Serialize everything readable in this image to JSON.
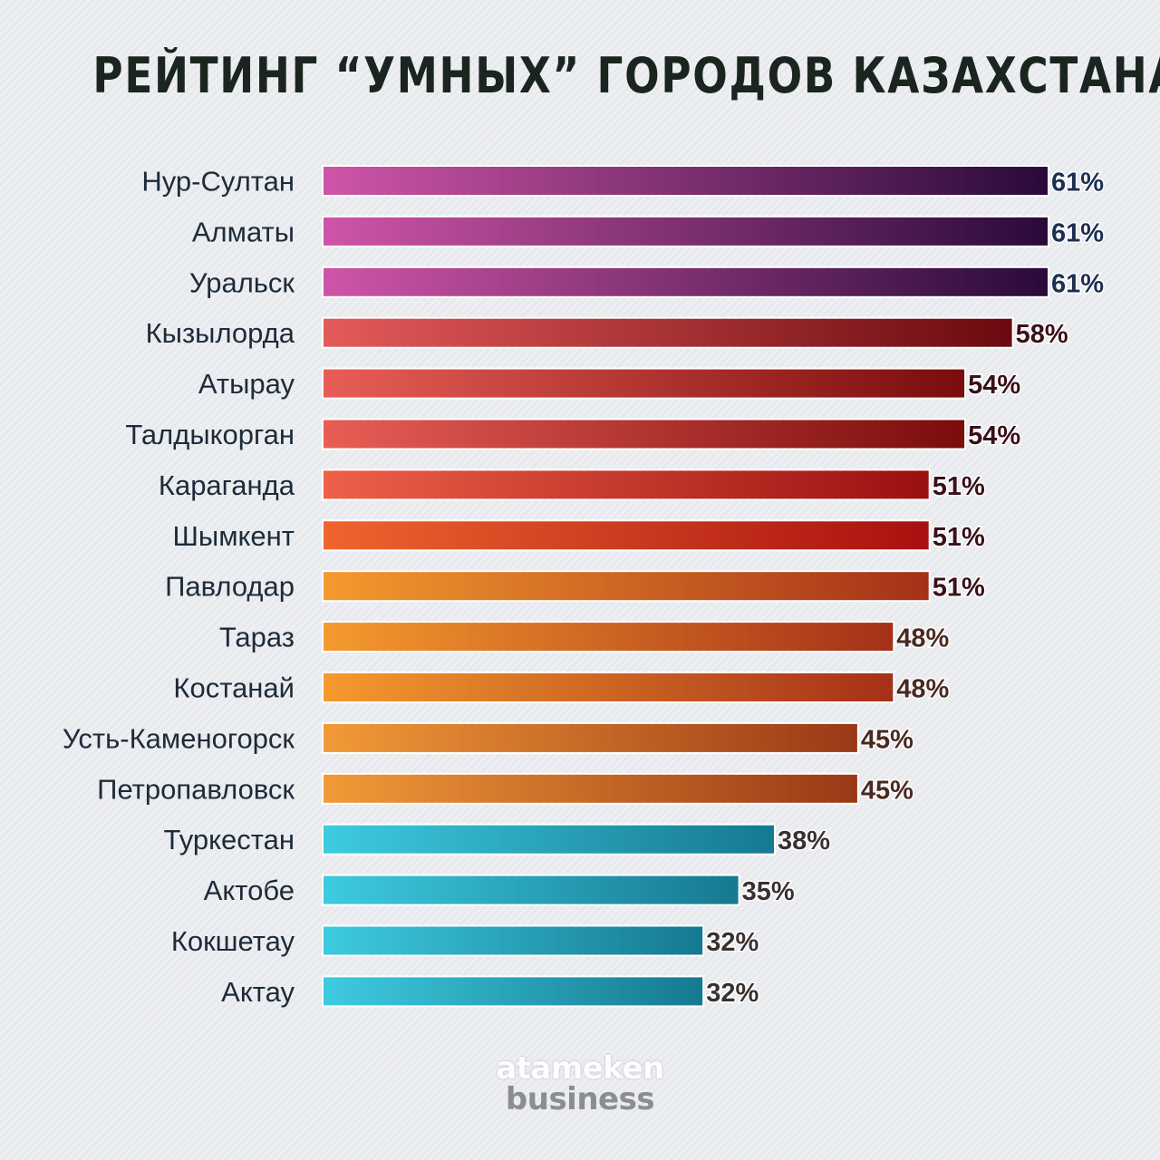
{
  "title": "РЕЙТИНГ “УМНЫХ” ГОРОДОВ КАЗАХСТАНА",
  "logo": {
    "line1": "atameken",
    "line2": "business"
  },
  "chart_data": {
    "type": "bar",
    "orientation": "horizontal",
    "title": "РЕЙТИНГ “УМНЫХ” ГОРОДОВ КАЗАХСТАНА",
    "categories": [
      "Нур-Султан",
      "Алматы",
      "Уральск",
      "Кызылорда",
      "Атырау",
      "Талдыкорган",
      "Караганда",
      "Шымкент",
      "Павлодар",
      "Тараз",
      "Костанай",
      "Усть-Каменогорск",
      "Петропавловск",
      "Туркестан",
      "Актобе",
      "Кокшетау",
      "Актау"
    ],
    "values": [
      61,
      61,
      61,
      58,
      54,
      54,
      51,
      51,
      51,
      48,
      48,
      45,
      45,
      38,
      35,
      32,
      32
    ],
    "value_labels": [
      "61%",
      "61%",
      "61%",
      "58%",
      "54%",
      "54%",
      "51%",
      "51%",
      "51%",
      "48%",
      "48%",
      "45%",
      "45%",
      "38%",
      "35%",
      "32%",
      "32%"
    ],
    "unit": "%",
    "xlim": [
      0,
      61
    ],
    "grid": false,
    "bar_gradients": [
      [
        "#cf55a8",
        "#2a0a3a"
      ],
      [
        "#cf55a8",
        "#2a0a3a"
      ],
      [
        "#cf55a8",
        "#2a0a3a"
      ],
      [
        "#e45a5a",
        "#6a0a10"
      ],
      [
        "#e85e56",
        "#7a0c0c"
      ],
      [
        "#e85e56",
        "#7a0c0c"
      ],
      [
        "#ee6049",
        "#9a1010"
      ],
      [
        "#f0642f",
        "#a81010"
      ],
      [
        "#f59a2e",
        "#a53018"
      ],
      [
        "#f59a2e",
        "#a53018"
      ],
      [
        "#f59a2e",
        "#a53018"
      ],
      [
        "#f29a38",
        "#9a3816"
      ],
      [
        "#f29a38",
        "#9a3816"
      ],
      [
        "#3ecbe0",
        "#157990"
      ],
      [
        "#3ecbe0",
        "#157990"
      ],
      [
        "#3ecbe0",
        "#157990"
      ],
      [
        "#3ecbe0",
        "#157990"
      ]
    ],
    "label_colors": [
      "#1c2f50",
      "#1c2f50",
      "#1c2f50",
      "#3a1018",
      "#3a1018",
      "#3a1018",
      "#3a1018",
      "#3a1018",
      "#3a1018",
      "#4a2a20",
      "#4a2a20",
      "#4a2a20",
      "#4a2a20",
      "#3a3030",
      "#3a3030",
      "#3a3030",
      "#3a3030"
    ]
  }
}
